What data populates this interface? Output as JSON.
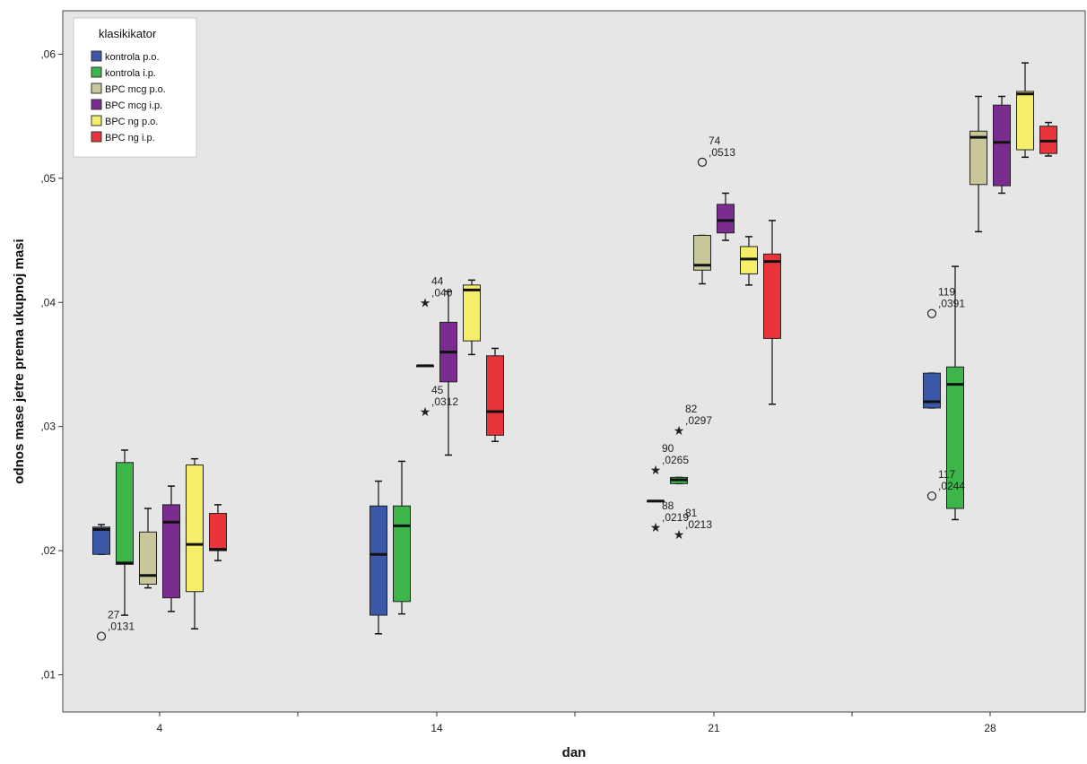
{
  "chart_data": {
    "type": "boxplot",
    "xlabel": "dan",
    "ylabel": "odnos mase jetre prema ukupnoj masi",
    "ylim": [
      0.007,
      0.0635
    ],
    "yticks": [
      ",01",
      ",02",
      ",03",
      ",04",
      ",05",
      ",06"
    ],
    "ytick_values": [
      0.01,
      0.02,
      0.03,
      0.04,
      0.05,
      0.06
    ],
    "categories": [
      "4",
      "14",
      "21",
      "28"
    ],
    "grid": false,
    "legend": {
      "title": "klasikikator",
      "position": "top-left"
    },
    "series": [
      {
        "name": "kontrola p.o.",
        "color": "#3b57a8"
      },
      {
        "name": "kontrola i.p.",
        "color": "#3cb54a"
      },
      {
        "name": "BPC mcg p.o.",
        "color": "#c9c79a"
      },
      {
        "name": "BPC mcg i.p.",
        "color": "#7a2c8f"
      },
      {
        "name": "BPC ng p.o.",
        "color": "#f4ee6a"
      },
      {
        "name": "BPC ng i.p.",
        "color": "#e8343a"
      }
    ],
    "boxes": [
      {
        "day": "4",
        "series": 0,
        "min": 0.0197,
        "q1": 0.0197,
        "median": 0.0217,
        "q3": 0.0219,
        "max": 0.0221
      },
      {
        "day": "4",
        "series": 1,
        "min": 0.0148,
        "q1": 0.0189,
        "median": 0.019,
        "q3": 0.0271,
        "max": 0.0281
      },
      {
        "day": "4",
        "series": 2,
        "min": 0.017,
        "q1": 0.0173,
        "median": 0.018,
        "q3": 0.0215,
        "max": 0.0234
      },
      {
        "day": "4",
        "series": 3,
        "min": 0.0151,
        "q1": 0.0162,
        "median": 0.0223,
        "q3": 0.0237,
        "max": 0.0252
      },
      {
        "day": "4",
        "series": 4,
        "min": 0.0137,
        "q1": 0.0167,
        "median": 0.0205,
        "q3": 0.0269,
        "max": 0.0274
      },
      {
        "day": "4",
        "series": 5,
        "min": 0.0192,
        "q1": 0.02,
        "median": 0.0201,
        "q3": 0.023,
        "max": 0.0237
      },
      {
        "day": "14",
        "series": 0,
        "min": 0.0133,
        "q1": 0.0148,
        "median": 0.0197,
        "q3": 0.0236,
        "max": 0.0256
      },
      {
        "day": "14",
        "series": 1,
        "min": 0.0149,
        "q1": 0.0159,
        "median": 0.022,
        "q3": 0.0236,
        "max": 0.0272
      },
      {
        "day": "14",
        "series": 2,
        "min": 0.0349,
        "q1": 0.0349,
        "median": 0.0349,
        "q3": 0.0349,
        "max": 0.0349
      },
      {
        "day": "14",
        "series": 3,
        "min": 0.0277,
        "q1": 0.0336,
        "median": 0.036,
        "q3": 0.0384,
        "max": 0.0409
      },
      {
        "day": "14",
        "series": 4,
        "min": 0.0358,
        "q1": 0.0369,
        "median": 0.041,
        "q3": 0.0414,
        "max": 0.0418
      },
      {
        "day": "14",
        "series": 5,
        "min": 0.0288,
        "q1": 0.0293,
        "median": 0.0312,
        "q3": 0.0357,
        "max": 0.0363
      },
      {
        "day": "21",
        "series": 1,
        "min": 0.0254,
        "q1": 0.0254,
        "median": 0.0257,
        "q3": 0.0259,
        "max": 0.0259
      },
      {
        "day": "21",
        "series": 2,
        "min": 0.0415,
        "q1": 0.0426,
        "median": 0.043,
        "q3": 0.0454,
        "max": 0.0454
      },
      {
        "day": "21",
        "series": 3,
        "min": 0.045,
        "q1": 0.0456,
        "median": 0.0466,
        "q3": 0.0479,
        "max": 0.0488
      },
      {
        "day": "21",
        "series": 4,
        "min": 0.0414,
        "q1": 0.0423,
        "median": 0.0435,
        "q3": 0.0445,
        "max": 0.0453
      },
      {
        "day": "21",
        "series": 5,
        "min": 0.0318,
        "q1": 0.0371,
        "median": 0.0433,
        "q3": 0.0439,
        "max": 0.0466
      },
      {
        "day": "21",
        "series": 0,
        "min": 0.024,
        "q1": 0.024,
        "median": 0.024,
        "q3": 0.024,
        "max": 0.024
      },
      {
        "day": "28",
        "series": 0,
        "min": 0.0315,
        "q1": 0.0315,
        "median": 0.032,
        "q3": 0.0343,
        "max": 0.0343
      },
      {
        "day": "28",
        "series": 1,
        "min": 0.0225,
        "q1": 0.0234,
        "median": 0.0334,
        "q3": 0.0348,
        "max": 0.0429
      },
      {
        "day": "28",
        "series": 2,
        "min": 0.0457,
        "q1": 0.0495,
        "median": 0.0533,
        "q3": 0.0538,
        "max": 0.0566
      },
      {
        "day": "28",
        "series": 3,
        "min": 0.0488,
        "q1": 0.0494,
        "median": 0.0529,
        "q3": 0.0559,
        "max": 0.0566
      },
      {
        "day": "28",
        "series": 4,
        "min": 0.0517,
        "q1": 0.0523,
        "median": 0.0568,
        "q3": 0.057,
        "max": 0.0593
      },
      {
        "day": "28",
        "series": 5,
        "min": 0.0518,
        "q1": 0.052,
        "median": 0.053,
        "q3": 0.0542,
        "max": 0.0545
      }
    ],
    "outliers": [
      {
        "day": "4",
        "series": 0,
        "value": 0.0131,
        "marker": "circle",
        "label_id": "27",
        "label_value": ",0131"
      },
      {
        "day": "14",
        "series": 2,
        "value": 0.04,
        "marker": "star",
        "label_id": "44",
        "label_value": ",040"
      },
      {
        "day": "14",
        "series": 2,
        "value": 0.0312,
        "marker": "star",
        "label_id": "45",
        "label_value": ",0312"
      },
      {
        "day": "21",
        "series": 0,
        "value": 0.0219,
        "marker": "star",
        "label_id": "88",
        "label_value": ",0219"
      },
      {
        "day": "21",
        "series": 0,
        "value": 0.0265,
        "marker": "star",
        "label_id": "90",
        "label_value": ",0265"
      },
      {
        "day": "21",
        "series": 1,
        "value": 0.0297,
        "marker": "star",
        "label_id": "82",
        "label_value": ",0297"
      },
      {
        "day": "21",
        "series": 1,
        "value": 0.0213,
        "marker": "star",
        "label_id": "81",
        "label_value": ",0213"
      },
      {
        "day": "21",
        "series": 2,
        "value": 0.0513,
        "marker": "circle",
        "label_id": "74",
        "label_value": ",0513"
      },
      {
        "day": "28",
        "series": 0,
        "value": 0.0391,
        "marker": "circle",
        "label_id": "119",
        "label_value": ",0391"
      },
      {
        "day": "28",
        "series": 0,
        "value": 0.0244,
        "marker": "circle",
        "label_id": "117",
        "label_value": ",0244"
      }
    ]
  }
}
